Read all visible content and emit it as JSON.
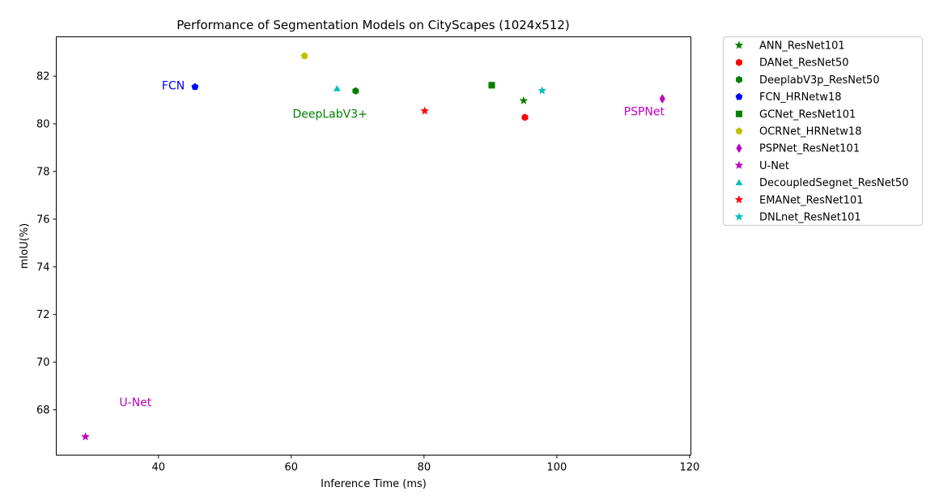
{
  "chart_data": {
    "type": "scatter",
    "title": "Performance of Segmentation Models on CityScapes (1024x512)",
    "xlabel": "Inference Time (ms)",
    "ylabel": "mIoU(%)",
    "xlim": [
      24.6,
      120.2
    ],
    "ylim": [
      66.1,
      83.65
    ],
    "xticks": [
      40,
      60,
      80,
      100,
      120
    ],
    "yticks": [
      68,
      70,
      72,
      74,
      76,
      78,
      80,
      82
    ],
    "grid": false,
    "legend_position": "outside-right-top",
    "series": [
      {
        "name": "ANN_ResNet101",
        "marker": "star",
        "color": "#008000",
        "points": [
          {
            "x": 95.0,
            "y": 80.97
          }
        ]
      },
      {
        "name": "DANet_ResNet50",
        "marker": "hexagon",
        "color": "#ff0000",
        "points": [
          {
            "x": 95.2,
            "y": 80.27
          }
        ]
      },
      {
        "name": "DeeplabV3p_ResNet50",
        "marker": "hexagon",
        "color": "#008000",
        "points": [
          {
            "x": 69.7,
            "y": 81.38
          }
        ]
      },
      {
        "name": "FCN_HRNetw18",
        "marker": "pentagon",
        "color": "#0000ff",
        "points": [
          {
            "x": 45.5,
            "y": 81.55
          }
        ]
      },
      {
        "name": "GCNet_ResNet101",
        "marker": "square",
        "color": "#008000",
        "points": [
          {
            "x": 90.2,
            "y": 81.62
          }
        ]
      },
      {
        "name": "OCRNet_HRNetw18",
        "marker": "pentagon",
        "color": "#bfbf00",
        "points": [
          {
            "x": 62.0,
            "y": 82.85
          }
        ]
      },
      {
        "name": "PSPNet_ResNet101",
        "marker": "thin_diamond",
        "color": "#bf00bf",
        "points": [
          {
            "x": 115.9,
            "y": 81.05
          }
        ]
      },
      {
        "name": "U-Net",
        "marker": "star",
        "color": "#bf00bf",
        "points": [
          {
            "x": 29.0,
            "y": 66.87
          }
        ]
      },
      {
        "name": "DecoupledSegnet_ResNet50",
        "marker": "triangle",
        "color": "#00bfbf",
        "points": [
          {
            "x": 66.9,
            "y": 81.48
          }
        ]
      },
      {
        "name": "EMANet_ResNet101",
        "marker": "star",
        "color": "#ff0000",
        "points": [
          {
            "x": 80.1,
            "y": 80.54
          }
        ]
      },
      {
        "name": "DNLnet_ResNet101",
        "marker": "star",
        "color": "#00bfbf",
        "points": [
          {
            "x": 97.8,
            "y": 81.39
          }
        ]
      }
    ],
    "annotations": [
      {
        "text": "FCN",
        "x": 40.5,
        "y": 81.45,
        "color": "#0000ff"
      },
      {
        "text": "DeepLabV3+",
        "x": 60.2,
        "y": 80.25,
        "color": "#008000"
      },
      {
        "text": "PSPNet",
        "x": 110.1,
        "y": 80.35,
        "color": "#bf00bf"
      },
      {
        "text": "U-Net",
        "x": 34.1,
        "y": 68.15,
        "color": "#bf00bf"
      }
    ]
  }
}
